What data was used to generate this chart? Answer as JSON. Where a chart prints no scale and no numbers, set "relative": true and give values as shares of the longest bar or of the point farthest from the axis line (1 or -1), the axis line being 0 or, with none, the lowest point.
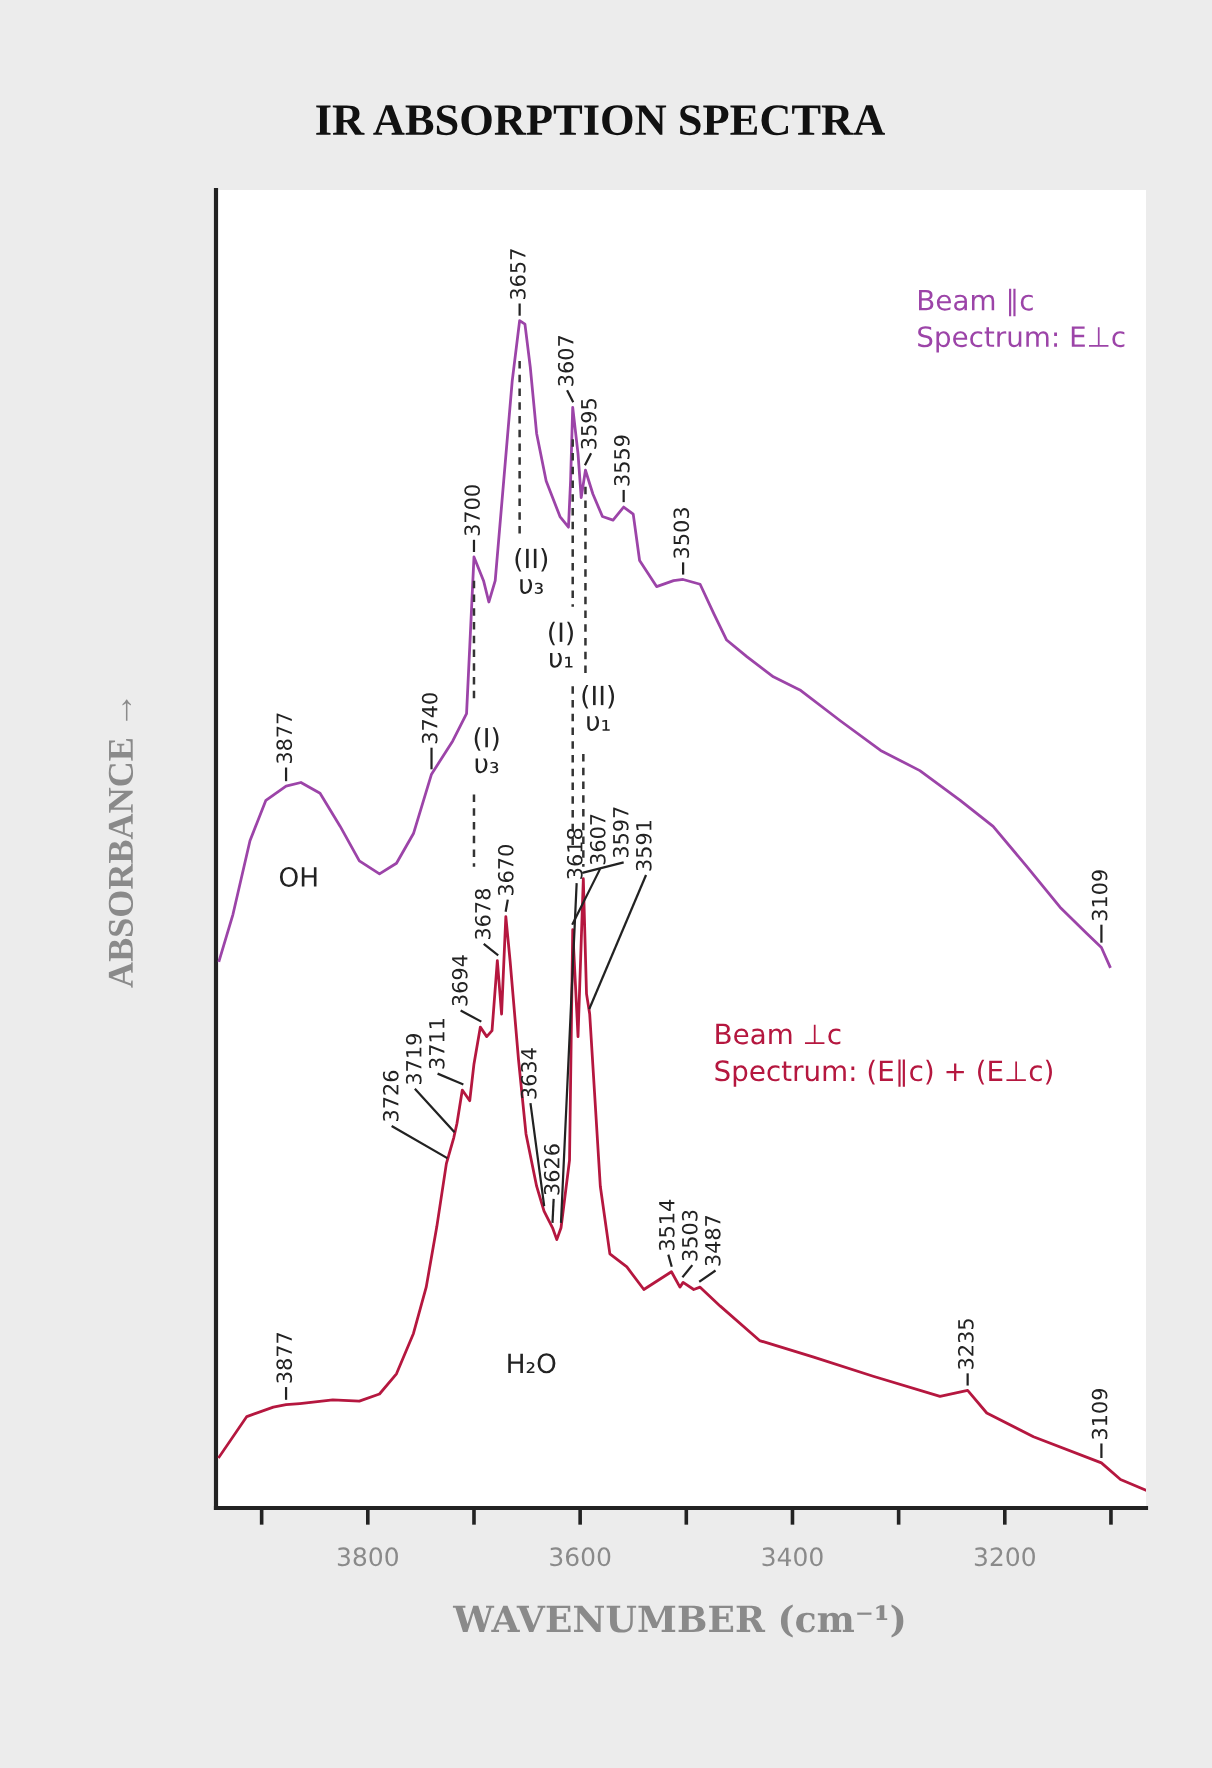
{
  "chart_data": {
    "type": "line",
    "title": "IR ABSORPTION SPECTRA",
    "xlabel": "WAVENUMBER (cm⁻¹)",
    "ylabel": "ABSORBANCE →",
    "relative": true,
    "xlim": [
      3943,
      3067
    ],
    "xticks": [
      {
        "value": 3900,
        "label": null
      },
      3800,
      {
        "value": 3700,
        "label": null
      },
      3600,
      {
        "value": 3500,
        "label": null
      },
      3400,
      {
        "value": 3300,
        "label": null
      },
      3200,
      {
        "value": 3100,
        "label": null
      }
    ],
    "series": [
      {
        "name": "Beam ∥c\nSpectrum: E⊥c",
        "color": "#9c44a8",
        "x": [
          3940,
          3927,
          3911,
          3896,
          3877,
          3863,
          3845,
          3826,
          3808,
          3789,
          3773,
          3757,
          3740,
          3720,
          3707,
          3704,
          3700,
          3691,
          3686,
          3680,
          3672,
          3664,
          3657,
          3652,
          3647,
          3641,
          3632,
          3619,
          3611,
          3609,
          3607,
          3602,
          3599,
          3595,
          3588,
          3579,
          3569,
          3559,
          3550,
          3544,
          3528,
          3512,
          3503,
          3487,
          3474,
          3462,
          3443,
          3418,
          3393,
          3355,
          3317,
          3280,
          3242,
          3211,
          3179,
          3148,
          3123,
          3109,
          3101
        ],
        "values": [
          0.461,
          0.5,
          0.562,
          0.596,
          0.608,
          0.611,
          0.602,
          0.574,
          0.545,
          0.534,
          0.543,
          0.568,
          0.618,
          0.646,
          0.669,
          0.725,
          0.801,
          0.781,
          0.763,
          0.781,
          0.865,
          0.949,
          1,
          0.997,
          0.961,
          0.905,
          0.865,
          0.835,
          0.826,
          0.865,
          0.927,
          0.888,
          0.851,
          0.874,
          0.854,
          0.835,
          0.832,
          0.843,
          0.837,
          0.798,
          0.776,
          0.781,
          0.782,
          0.778,
          0.753,
          0.731,
          0.717,
          0.7,
          0.689,
          0.663,
          0.638,
          0.621,
          0.596,
          0.574,
          0.54,
          0.506,
          0.484,
          0.472,
          0.456
        ],
        "type": "line"
      },
      {
        "name": "Beam ⊥c\nSpectrum: (E∥c) + (E⊥c)",
        "color": "#b5173f",
        "x": [
          3940,
          3914,
          3889,
          3877,
          3864,
          3833,
          3808,
          3789,
          3773,
          3757,
          3745,
          3735,
          3726,
          3719,
          3716,
          3711,
          3704,
          3700,
          3694,
          3688,
          3683,
          3678,
          3674,
          3670,
          3666,
          3658,
          3651,
          3641,
          3634,
          3626,
          3622,
          3618,
          3610,
          3607,
          3602,
          3597,
          3594,
          3591,
          3581,
          3572,
          3556,
          3540,
          3514,
          3506,
          3503,
          3493,
          3487,
          3468,
          3431,
          3380,
          3324,
          3261,
          3235,
          3217,
          3173,
          3109,
          3091,
          3067
        ],
        "values": [
          0.043,
          0.077,
          0.085,
          0.087,
          0.088,
          0.091,
          0.09,
          0.096,
          0.113,
          0.147,
          0.186,
          0.237,
          0.29,
          0.312,
          0.324,
          0.352,
          0.343,
          0.374,
          0.405,
          0.397,
          0.402,
          0.461,
          0.416,
          0.498,
          0.461,
          0.377,
          0.315,
          0.271,
          0.25,
          0.236,
          0.226,
          0.236,
          0.293,
          0.487,
          0.397,
          0.53,
          0.433,
          0.416,
          0.271,
          0.214,
          0.203,
          0.184,
          0.199,
          0.186,
          0.19,
          0.184,
          0.186,
          0.17,
          0.141,
          0.127,
          0.111,
          0.094,
          0.099,
          0.08,
          0.06,
          0.038,
          0.024,
          0.015
        ],
        "type": "line"
      },
      {
        "type": "line",
        "line_style": "dashed",
        "color": "#333333",
        "x": [
          3700,
          3700
        ],
        "values": [
          0.781,
          0.68
        ]
      },
      {
        "type": "line",
        "line_style": "dashed",
        "color": "#333333",
        "x": [
          3700,
          3700
        ],
        "values": [
          0.601,
          0.54
        ]
      },
      {
        "type": "line",
        "line_style": "dashed",
        "color": "#333333",
        "x": [
          3657,
          3657
        ],
        "values": [
          0.966,
          0.82
        ]
      },
      {
        "type": "line",
        "line_style": "dashed",
        "color": "#333333",
        "x": [
          3607,
          3607
        ],
        "values": [
          0.9,
          0.759
        ]
      },
      {
        "type": "line",
        "line_style": "dashed",
        "color": "#333333",
        "x": [
          3607,
          3607
        ],
        "values": [
          0.692,
          0.557
        ]
      },
      {
        "type": "line",
        "line_style": "dashed",
        "color": "#333333",
        "x": [
          3595,
          3595
        ],
        "values": [
          0.86,
          0.702
        ]
      },
      {
        "type": "line",
        "line_style": "dashed",
        "color": "#333333",
        "x": [
          3597,
          3597
        ],
        "values": [
          0.635,
          0.54
        ]
      }
    ],
    "annotations": [
      "(I)\nυ₃",
      "(II)\nυ₃",
      "(I)\nυ₁",
      "(II)\nυ₁",
      "OH",
      "H₂O",
      {
        "text": "3877",
        "x": 3877,
        "y": 0.608
      },
      {
        "text": "3740",
        "x": 3740,
        "y": 0.618
      },
      {
        "text": "3700",
        "x": 3700,
        "y": 0.801
      },
      {
        "text": "3657",
        "x": 3657,
        "y": 1
      },
      {
        "text": "3607",
        "x": 3607,
        "y": 0.927
      },
      {
        "text": "3595",
        "x": 3595,
        "y": 0.874
      },
      {
        "text": "3559",
        "x": 3559,
        "y": 0.843
      },
      {
        "text": "3503",
        "x": 3503,
        "y": 0.782
      },
      {
        "text": "3109",
        "x": 3109,
        "y": 0.472
      },
      {
        "text": "3877",
        "x": 3877,
        "y": 0.087
      },
      {
        "text": "3726",
        "x": 3726,
        "y": 0.29
      },
      {
        "text": "3719",
        "x": 3719,
        "y": 0.312
      },
      {
        "text": "3711",
        "x": 3711,
        "y": 0.352
      },
      {
        "text": "3694",
        "x": 3694,
        "y": 0.405
      },
      {
        "text": "3678",
        "x": 3678,
        "y": 0.461
      },
      {
        "text": "3670",
        "x": 3670,
        "y": 0.498
      },
      {
        "text": "3634",
        "x": 3634,
        "y": 0.25
      },
      {
        "text": "3626",
        "x": 3626,
        "y": 0.236
      },
      {
        "text": "3618",
        "x": 3618,
        "y": 0.236
      },
      {
        "text": "3607",
        "x": 3607,
        "y": 0.487
      },
      {
        "text": "3597",
        "x": 3597,
        "y": 0.53
      },
      {
        "text": "3591",
        "x": 3591,
        "y": 0.416
      },
      {
        "text": "3514",
        "x": 3514,
        "y": 0.199
      },
      {
        "text": "3503",
        "x": 3503,
        "y": 0.19
      },
      {
        "text": "3487",
        "x": 3487,
        "y": 0.186
      },
      {
        "text": "3235",
        "x": 3235,
        "y": 0.099
      },
      {
        "text": "3109",
        "x": 3109,
        "y": 0.038
      }
    ]
  }
}
